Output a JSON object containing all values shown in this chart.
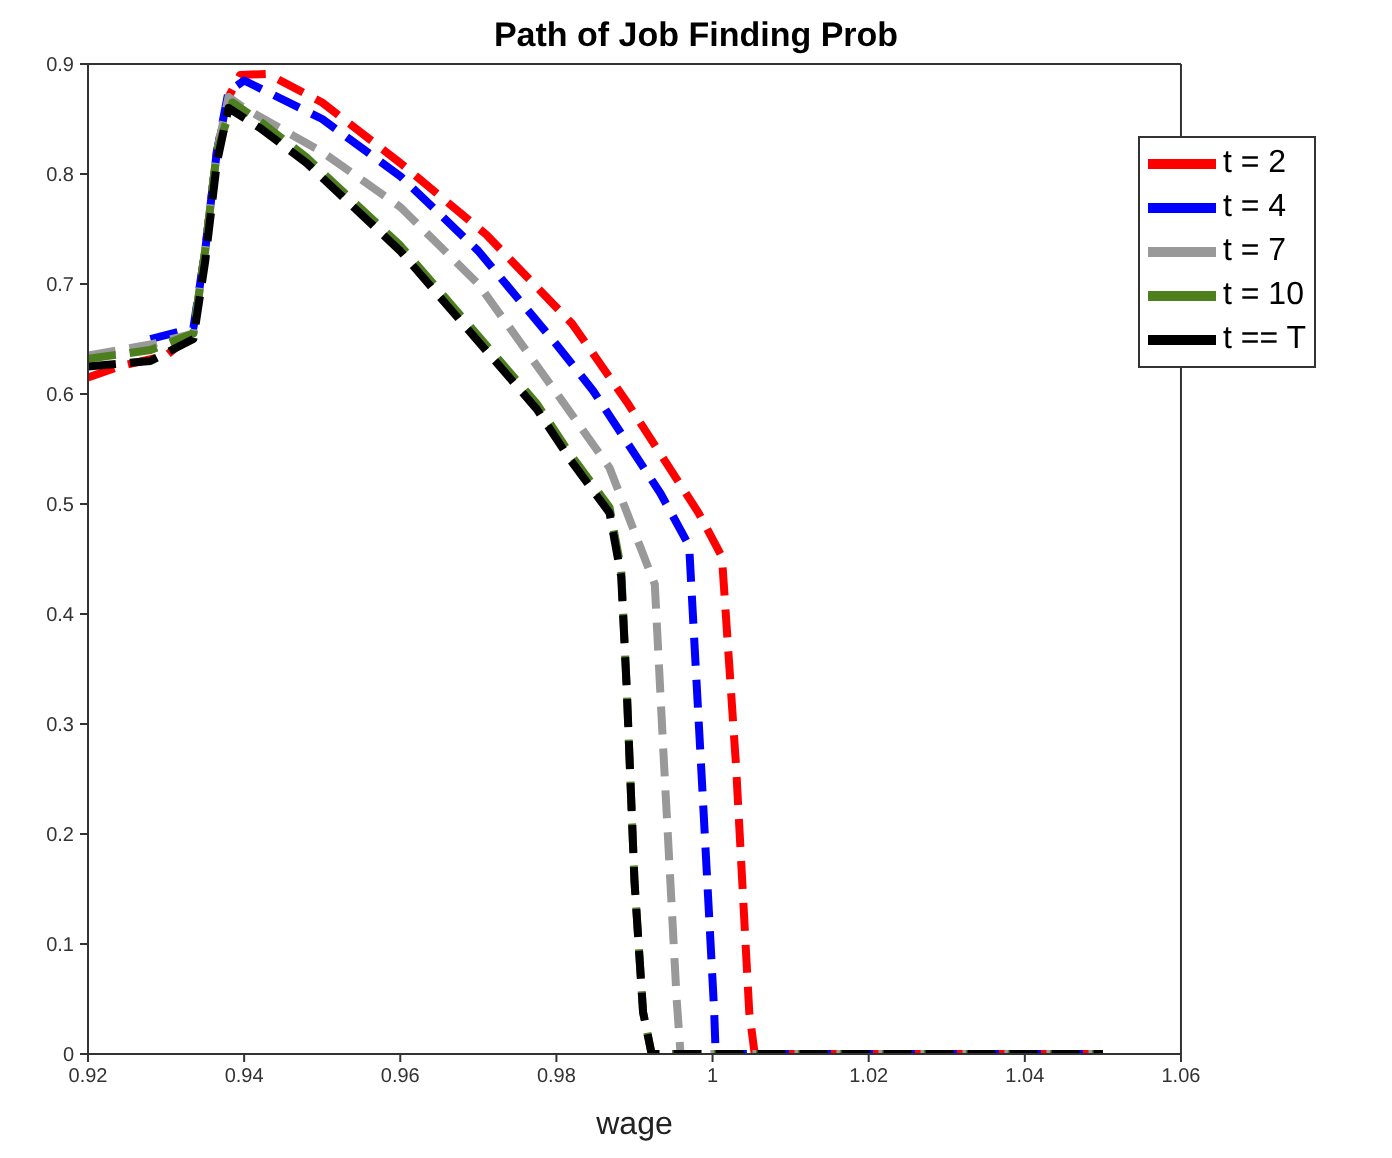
{
  "chart_data": {
    "type": "line",
    "title": "Path of Job Finding Prob",
    "xlabel": "wage",
    "xlim": [
      0.92,
      1.06
    ],
    "xticks": [
      0.92,
      0.94,
      0.96,
      0.98,
      1,
      1.02,
      1.04,
      1.06
    ],
    "ylim": [
      0,
      0.9
    ],
    "yticks": [
      0,
      0.1,
      0.2,
      0.3,
      0.4,
      0.5,
      0.6,
      0.7,
      0.8,
      0.9
    ],
    "grid": false,
    "legend": "top right",
    "line_style": "dashed",
    "marker": "none",
    "series": [
      {
        "name": "t = 2",
        "color": "#ff0000",
        "x": [
          0.92,
          0.924,
          0.93,
          0.9335,
          0.935,
          0.9365,
          0.938,
          0.9395,
          0.943,
          0.95,
          0.96,
          0.971,
          0.982,
          0.989,
          0.9982,
          1.0012,
          1.003,
          1.0047,
          1.0054,
          1.05
        ],
        "values": [
          0.615,
          0.625,
          0.635,
          0.655,
          0.73,
          0.82,
          0.87,
          0.89,
          0.891,
          0.865,
          0.81,
          0.745,
          0.664,
          0.593,
          0.492,
          0.452,
          0.263,
          0.038,
          0,
          0
        ]
      },
      {
        "name": "t = 4",
        "color": "#0000ff",
        "x": [
          0.928,
          0.9335,
          0.935,
          0.9365,
          0.938,
          0.94,
          0.95,
          0.96,
          0.97,
          0.98,
          0.9847,
          0.9933,
          0.997,
          0.9987,
          1.0002,
          1.0004,
          1.05
        ],
        "values": [
          0.65,
          0.66,
          0.73,
          0.82,
          0.875,
          0.885,
          0.85,
          0.798,
          0.73,
          0.645,
          0.603,
          0.51,
          0.462,
          0.24,
          0.04,
          0,
          0
        ]
      },
      {
        "name": "t = 7",
        "color": "#999999",
        "x": [
          0.92,
          0.928,
          0.9335,
          0.935,
          0.9365,
          0.938,
          0.94,
          0.95,
          0.96,
          0.97,
          0.9803,
          0.9868,
          0.9926,
          0.9937,
          0.9954,
          0.9959,
          1.05
        ],
        "values": [
          0.635,
          0.645,
          0.655,
          0.73,
          0.82,
          0.87,
          0.86,
          0.82,
          0.77,
          0.7,
          0.598,
          0.533,
          0.427,
          0.275,
          0.05,
          0,
          0
        ]
      },
      {
        "name": "t = 10",
        "color": "#4d7f1f",
        "x": [
          0.92,
          0.928,
          0.9335,
          0.935,
          0.9365,
          0.9385,
          0.942,
          0.948,
          0.96,
          0.9775,
          0.9818,
          0.9868,
          0.9883,
          0.989,
          0.99,
          0.9911,
          0.9922,
          1.05
        ],
        "values": [
          0.632,
          0.64,
          0.655,
          0.73,
          0.82,
          0.865,
          0.848,
          0.815,
          0.735,
          0.591,
          0.545,
          0.497,
          0.44,
          0.333,
          0.157,
          0.038,
          0,
          0
        ]
      },
      {
        "name": "t == T",
        "color": "#000000",
        "x": [
          0.92,
          0.928,
          0.9335,
          0.935,
          0.9365,
          0.938,
          0.942,
          0.948,
          0.96,
          0.9775,
          0.9818,
          0.9868,
          0.9883,
          0.989,
          0.99,
          0.9911,
          0.9922,
          1.05
        ],
        "values": [
          0.625,
          0.63,
          0.65,
          0.72,
          0.81,
          0.86,
          0.842,
          0.81,
          0.73,
          0.586,
          0.54,
          0.492,
          0.434,
          0.333,
          0.157,
          0.038,
          0,
          0
        ]
      }
    ]
  }
}
